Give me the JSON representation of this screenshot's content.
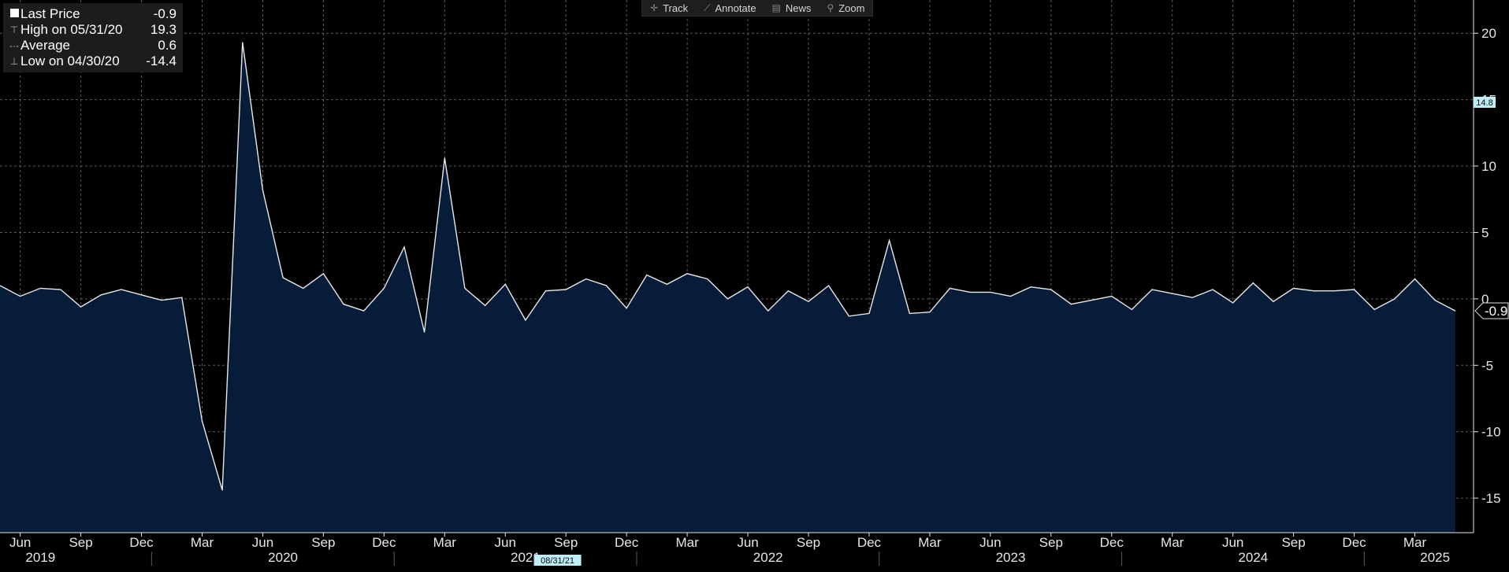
{
  "legend": {
    "items": [
      {
        "label": "Last Price",
        "value": "-0.9",
        "icon": "square-icon"
      },
      {
        "label": "High on 05/31/20",
        "value": "19.3",
        "icon": "high-marker-icon"
      },
      {
        "label": "Average",
        "value": "0.6",
        "icon": "average-line-icon"
      },
      {
        "label": "Low on 04/30/20",
        "value": "-14.4",
        "icon": "low-marker-icon"
      }
    ]
  },
  "toolbar": {
    "items": [
      {
        "label": "Track",
        "icon": "crosshair-icon"
      },
      {
        "label": "Annotate",
        "icon": "pencil-icon"
      },
      {
        "label": "News",
        "icon": "news-icon"
      },
      {
        "label": "Zoom",
        "icon": "magnifier-icon"
      }
    ]
  },
  "colors": {
    "background": "#000000",
    "area_fill": "#061c38",
    "line": "#e8e8e8",
    "grid": "#5a5a5a",
    "axis_text": "#e6e6e6",
    "highlight_tag": "#bfeef6"
  },
  "chart_data": {
    "type": "area",
    "x": [
      "2019-05",
      "2019-06",
      "2019-07",
      "2019-08",
      "2019-09",
      "2019-10",
      "2019-11",
      "2019-12",
      "2020-01",
      "2020-02",
      "2020-03",
      "2020-04",
      "2020-05",
      "2020-06",
      "2020-07",
      "2020-08",
      "2020-09",
      "2020-10",
      "2020-11",
      "2020-12",
      "2021-01",
      "2021-02",
      "2021-03",
      "2021-04",
      "2021-05",
      "2021-06",
      "2021-07",
      "2021-08",
      "2021-09",
      "2021-10",
      "2021-11",
      "2021-12",
      "2022-01",
      "2022-02",
      "2022-03",
      "2022-04",
      "2022-05",
      "2022-06",
      "2022-07",
      "2022-08",
      "2022-09",
      "2022-10",
      "2022-11",
      "2022-12",
      "2023-01",
      "2023-02",
      "2023-03",
      "2023-04",
      "2023-05",
      "2023-06",
      "2023-07",
      "2023-08",
      "2023-09",
      "2023-10",
      "2023-11",
      "2023-12",
      "2024-01",
      "2024-02",
      "2024-03",
      "2024-04",
      "2024-05",
      "2024-06",
      "2024-07",
      "2024-08",
      "2024-09",
      "2024-10",
      "2024-11",
      "2024-12",
      "2025-01",
      "2025-02",
      "2025-03",
      "2025-04",
      "2025-05"
    ],
    "series": [
      {
        "values": [
          1.0,
          0.2,
          0.8,
          0.7,
          -0.6,
          0.3,
          0.7,
          0.3,
          -0.1,
          0.1,
          -9.2,
          -14.4,
          19.3,
          8.2,
          1.6,
          0.8,
          1.9,
          -0.4,
          -0.9,
          0.8,
          3.9,
          -2.5,
          10.6,
          0.8,
          -0.5,
          1.1,
          -1.6,
          0.6,
          0.7,
          1.5,
          1.0,
          -0.7,
          1.8,
          1.1,
          1.9,
          1.5,
          0.0,
          0.9,
          -0.9,
          0.6,
          -0.2,
          1.0,
          -1.3,
          -1.1,
          4.4,
          -1.1,
          -1.0,
          0.8,
          0.5,
          0.5,
          0.2,
          0.9,
          0.7,
          -0.4,
          -0.1,
          0.2,
          -0.8,
          0.7,
          0.4,
          0.1,
          0.7,
          -0.3,
          1.2,
          -0.2,
          0.8,
          0.6,
          0.6,
          0.7,
          -0.8,
          0.0,
          1.5,
          -0.1,
          -0.9
        ]
      }
    ],
    "y_ticks": [
      20,
      15,
      10,
      5,
      0,
      -5,
      -10,
      -15
    ],
    "ylim": [
      -17.6,
      22.5
    ],
    "x_month_labels": [
      {
        "date": "2019-06",
        "label": "Jun"
      },
      {
        "date": "2019-09",
        "label": "Sep"
      },
      {
        "date": "2019-12",
        "label": "Dec"
      },
      {
        "date": "2020-03",
        "label": "Mar"
      },
      {
        "date": "2020-06",
        "label": "Jun"
      },
      {
        "date": "2020-09",
        "label": "Sep"
      },
      {
        "date": "2020-12",
        "label": "Dec"
      },
      {
        "date": "2021-03",
        "label": "Mar"
      },
      {
        "date": "2021-06",
        "label": "Jun"
      },
      {
        "date": "2021-09",
        "label": "Sep"
      },
      {
        "date": "2021-12",
        "label": "Dec"
      },
      {
        "date": "2022-03",
        "label": "Mar"
      },
      {
        "date": "2022-06",
        "label": "Jun"
      },
      {
        "date": "2022-09",
        "label": "Sep"
      },
      {
        "date": "2022-12",
        "label": "Dec"
      },
      {
        "date": "2023-03",
        "label": "Mar"
      },
      {
        "date": "2023-06",
        "label": "Jun"
      },
      {
        "date": "2023-09",
        "label": "Sep"
      },
      {
        "date": "2023-12",
        "label": "Dec"
      },
      {
        "date": "2024-03",
        "label": "Mar"
      },
      {
        "date": "2024-06",
        "label": "Jun"
      },
      {
        "date": "2024-09",
        "label": "Sep"
      },
      {
        "date": "2024-12",
        "label": "Dec"
      },
      {
        "date": "2025-03",
        "label": "Mar"
      }
    ],
    "x_year_labels": [
      {
        "date": "2019-07",
        "label": "2019"
      },
      {
        "date": "2020-07",
        "label": "2020"
      },
      {
        "date": "2021-07",
        "label": "2021"
      },
      {
        "date": "2022-07",
        "label": "2022"
      },
      {
        "date": "2023-07",
        "label": "2023"
      },
      {
        "date": "2024-07",
        "label": "2024"
      },
      {
        "date": "2025-04",
        "label": "2025"
      }
    ],
    "x_cursor_tag": {
      "date": "2021-08",
      "label": "08/31/21"
    },
    "y_cursor_tag": {
      "value": 14.8,
      "label": "14.8"
    },
    "last_value_tag": {
      "value": -0.9,
      "label": "-0.9"
    },
    "grid": true
  }
}
